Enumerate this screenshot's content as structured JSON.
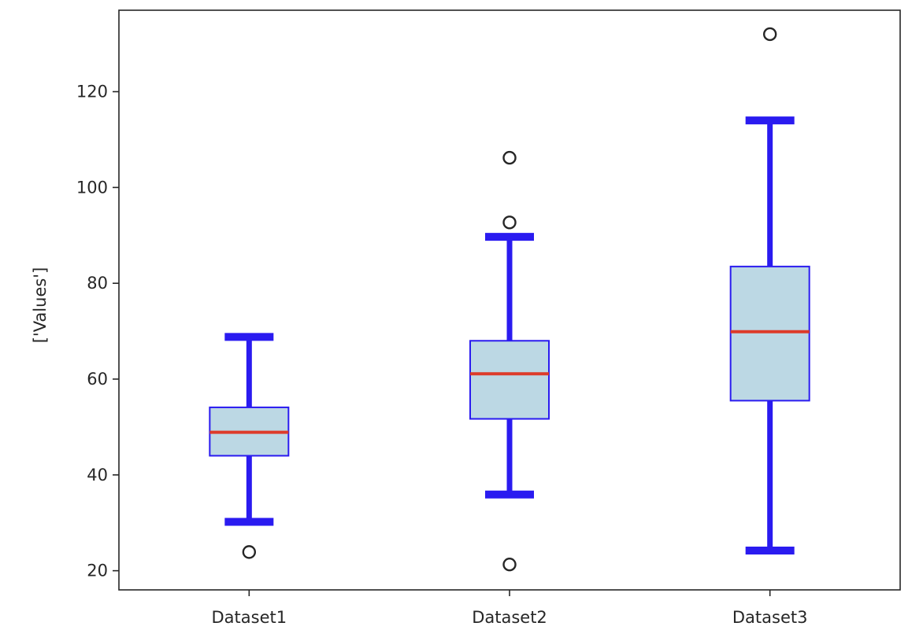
{
  "chart_data": {
    "type": "boxplot",
    "title": "",
    "xlabel": "",
    "ylabel": "['Values']",
    "ylim": [
      16,
      137
    ],
    "yticks": [
      20,
      40,
      60,
      80,
      100,
      120
    ],
    "grid": false,
    "categories": [
      "Dataset1",
      "Dataset2",
      "Dataset3"
    ],
    "boxes": [
      {
        "whisker_low": 30.2,
        "q1": 44.0,
        "median": 48.9,
        "q3": 54.1,
        "whisker_high": 68.8,
        "outliers": [
          23.9
        ]
      },
      {
        "whisker_low": 35.9,
        "q1": 51.7,
        "median": 61.1,
        "q3": 68.0,
        "whisker_high": 89.7,
        "outliers": [
          21.3,
          92.7,
          106.2
        ]
      },
      {
        "whisker_low": 24.2,
        "q1": 55.5,
        "median": 69.9,
        "q3": 83.5,
        "whisker_high": 114.0,
        "outliers": [
          132.0
        ]
      }
    ],
    "colors": {
      "box_fill": "#bcd8e4",
      "box_edge": "#2a1bf0",
      "whisker": "#2a1bf0",
      "median": "#dd3b2a",
      "outlier_edge": "#262626",
      "axes": "#262626"
    }
  }
}
